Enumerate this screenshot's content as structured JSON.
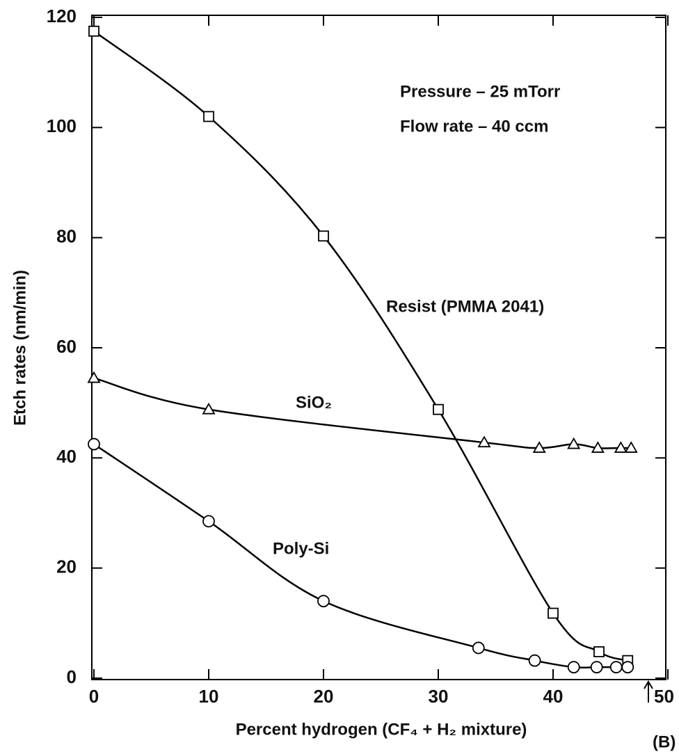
{
  "chart_data": {
    "type": "line",
    "x_label": "Percent hydrogen (CF₄ + H₂ mixture)",
    "y_label": "Etch rates (nm/min)",
    "annotations": [
      "Pressure – 25 mTorr",
      "Flow rate – 40 ccm",
      "(B)"
    ],
    "xlim": [
      0,
      50
    ],
    "xticks": [
      0,
      10,
      20,
      30,
      40,
      50
    ],
    "ylim": [
      0,
      120
    ],
    "yticks": [
      0,
      20,
      40,
      60,
      80,
      100,
      120
    ],
    "grid": false,
    "series": [
      {
        "name": "Resist (PMMA 2041)",
        "color": "#000000",
        "marker": "square",
        "x": [
          0,
          10,
          20,
          30,
          40,
          44,
          46.5
        ],
        "values": [
          117.5,
          102,
          80.3,
          48.8,
          11.8,
          4.8,
          3.2
        ]
      },
      {
        "name": "SiO₂",
        "color": "#000000",
        "marker": "triangle",
        "x": [
          0,
          10,
          34,
          38.8,
          41.8,
          43.9,
          45.9,
          46.8
        ],
        "values": [
          54.5,
          48.8,
          42.8,
          41.8,
          42.5,
          41.8,
          41.8,
          41.8
        ]
      },
      {
        "name": "Poly-Si",
        "color": "#000000",
        "marker": "circle",
        "x": [
          0,
          10,
          20,
          33.5,
          38.4,
          41.8,
          43.8,
          45.5,
          46.5
        ],
        "values": [
          42.5,
          28.5,
          14,
          5.5,
          3.2,
          2,
          2,
          2,
          2
        ]
      }
    ]
  }
}
